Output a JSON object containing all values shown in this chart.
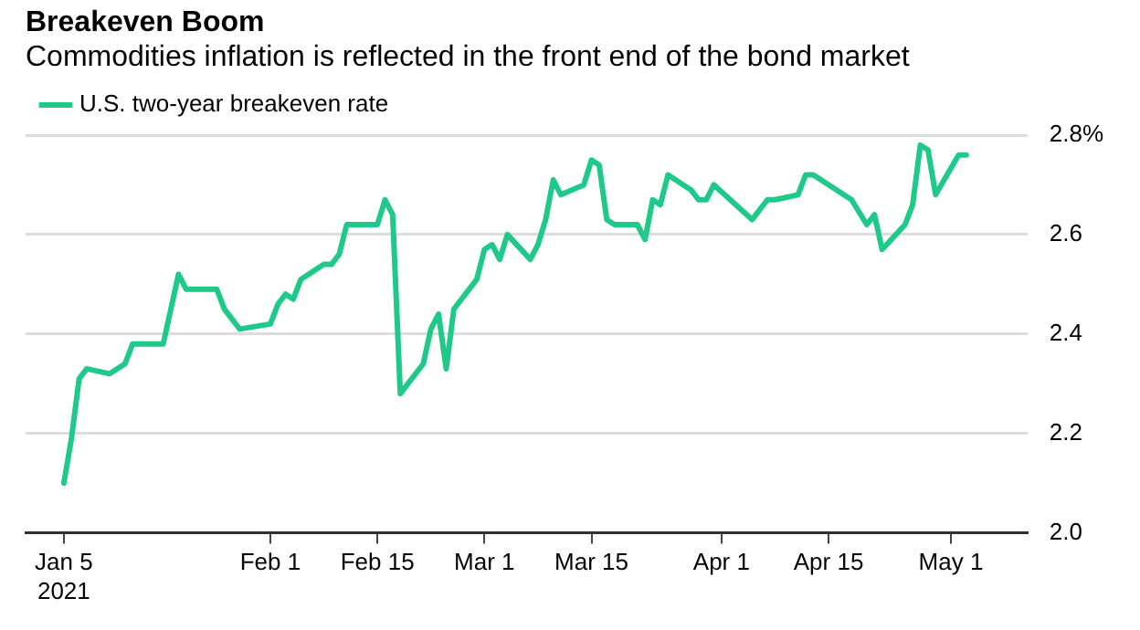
{
  "chart_data": {
    "type": "line",
    "title": "Breakeven Boom",
    "subtitle": "Commodities inflation is reflected in the front end of the bond market",
    "x": [
      "2021-01-05",
      "2021-01-06",
      "2021-01-07",
      "2021-01-08",
      "2021-01-11",
      "2021-01-13",
      "2021-01-14",
      "2021-01-15",
      "2021-01-18",
      "2021-01-20",
      "2021-01-21",
      "2021-01-25",
      "2021-01-26",
      "2021-01-28",
      "2021-02-01",
      "2021-02-02",
      "2021-02-03",
      "2021-02-04",
      "2021-02-05",
      "2021-02-08",
      "2021-02-09",
      "2021-02-10",
      "2021-02-11",
      "2021-02-15",
      "2021-02-16",
      "2021-02-17",
      "2021-02-18",
      "2021-02-21",
      "2021-02-22",
      "2021-02-23",
      "2021-02-24",
      "2021-02-25",
      "2021-02-28",
      "2021-03-01",
      "2021-03-02",
      "2021-03-03",
      "2021-03-04",
      "2021-03-07",
      "2021-03-08",
      "2021-03-09",
      "2021-03-10",
      "2021-03-11",
      "2021-03-14",
      "2021-03-15",
      "2021-03-16",
      "2021-03-17",
      "2021-03-18",
      "2021-03-21",
      "2021-03-22",
      "2021-03-23",
      "2021-03-24",
      "2021-03-25",
      "2021-03-28",
      "2021-03-29",
      "2021-03-30",
      "2021-03-31",
      "2021-04-05",
      "2021-04-07",
      "2021-04-08",
      "2021-04-11",
      "2021-04-12",
      "2021-04-13",
      "2021-04-18",
      "2021-04-20",
      "2021-04-21",
      "2021-04-22",
      "2021-04-25",
      "2021-04-26",
      "2021-04-27",
      "2021-04-28",
      "2021-04-29",
      "2021-05-02",
      "2021-05-03"
    ],
    "series": [
      {
        "name": "U.S. two-year breakeven rate",
        "color": "#1fc98a",
        "values": [
          2.1,
          2.19,
          2.31,
          2.33,
          2.32,
          2.34,
          2.38,
          2.38,
          2.38,
          2.52,
          2.49,
          2.49,
          2.45,
          2.41,
          2.42,
          2.46,
          2.48,
          2.47,
          2.51,
          2.54,
          2.54,
          2.56,
          2.62,
          2.62,
          2.67,
          2.64,
          2.28,
          2.34,
          2.41,
          2.44,
          2.33,
          2.45,
          2.51,
          2.57,
          2.58,
          2.55,
          2.6,
          2.55,
          2.58,
          2.63,
          2.71,
          2.68,
          2.7,
          2.75,
          2.74,
          2.63,
          2.62,
          2.62,
          2.59,
          2.67,
          2.66,
          2.72,
          2.69,
          2.67,
          2.67,
          2.7,
          2.63,
          2.67,
          2.67,
          2.68,
          2.72,
          2.72,
          2.67,
          2.62,
          2.64,
          2.57,
          2.62,
          2.66,
          2.78,
          2.77,
          2.68,
          2.76,
          2.76
        ]
      }
    ],
    "xlim": [
      "2020-12-31",
      "2021-05-11"
    ],
    "xticks": [
      {
        "value": "2021-01-05",
        "label": "Jan 5\n2021"
      },
      {
        "value": "2021-02-01",
        "label": "Feb 1"
      },
      {
        "value": "2021-02-15",
        "label": "Feb 15"
      },
      {
        "value": "2021-03-01",
        "label": "Mar 1"
      },
      {
        "value": "2021-03-15",
        "label": "Mar 15"
      },
      {
        "value": "2021-04-01",
        "label": "Apr 1"
      },
      {
        "value": "2021-04-15",
        "label": "Apr 15"
      },
      {
        "value": "2021-05-01",
        "label": "May 1"
      }
    ],
    "ylim": [
      2.0,
      2.8
    ],
    "yticks": [
      {
        "value": 2.0,
        "label": "2.0"
      },
      2.2,
      2.4,
      2.6,
      {
        "value": 2.8,
        "label": "2.8%"
      }
    ],
    "grid": "y",
    "legend": "top left",
    "marker": "none",
    "line_style": "solid"
  }
}
